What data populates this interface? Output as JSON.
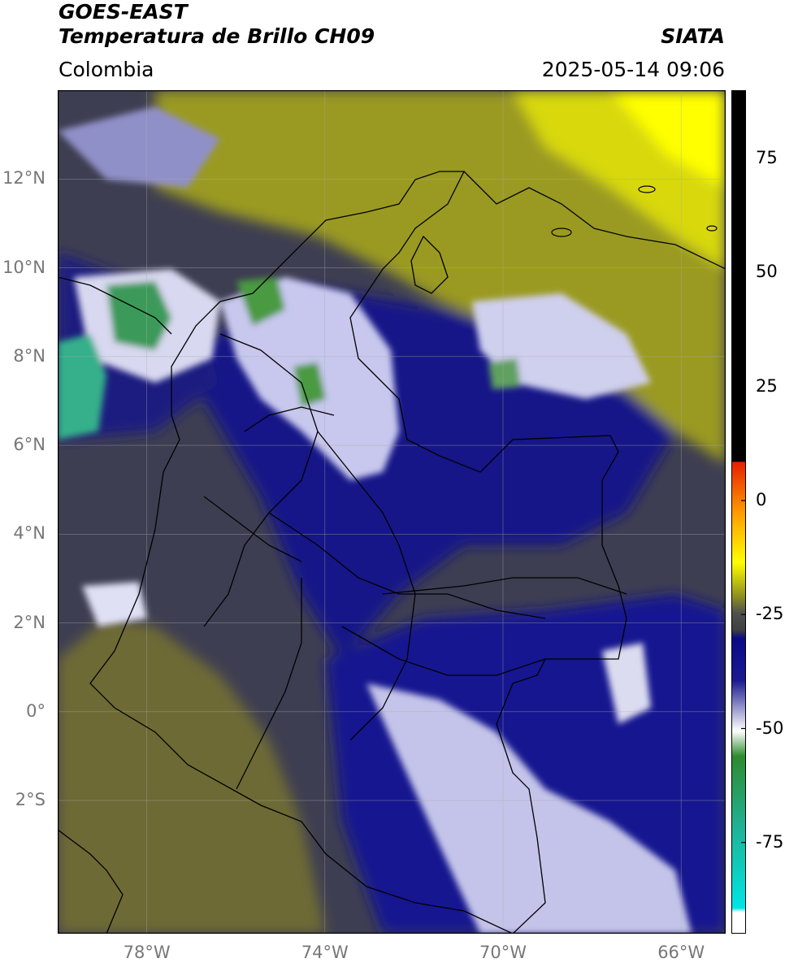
{
  "header": {
    "satellite": "GOES-EAST",
    "product": "Temperatura de Brillo CH09",
    "agency": "SIATA",
    "region": "Colombia",
    "timestamp": "2025-05-14 09:06"
  },
  "map": {
    "lat_labels": [
      "12°N",
      "10°N",
      "8°N",
      "6°N",
      "4°N",
      "2°N",
      "0°",
      "2°S"
    ],
    "lon_labels": [
      "78°W",
      "74°W",
      "70°W",
      "66°W"
    ],
    "lat_values": [
      12,
      10,
      8,
      6,
      4,
      2,
      0,
      -2
    ],
    "lon_values": [
      -78,
      -74,
      -70,
      -66
    ],
    "extent": {
      "lon_min": -80,
      "lon_max": -65,
      "lat_min": -5,
      "lat_max": 14
    }
  },
  "colorbar": {
    "ticks": [
      "75",
      "50",
      "25",
      "0",
      "-25",
      "-50",
      "-75"
    ],
    "tick_values": [
      75,
      50,
      25,
      0,
      -25,
      -50,
      -75
    ],
    "range": [
      -95,
      90
    ],
    "colors": {
      "warm": "#000000",
      "red": "#e62000",
      "orange": "#ff9900",
      "yellow": "#ffff00",
      "olive": "#8f8f20",
      "gray": "#404040",
      "navy": "#0a0a88",
      "white": "#ffffff",
      "green": "#2e8b2e",
      "teal": "#20b090",
      "cyan": "#00e5e5"
    }
  }
}
